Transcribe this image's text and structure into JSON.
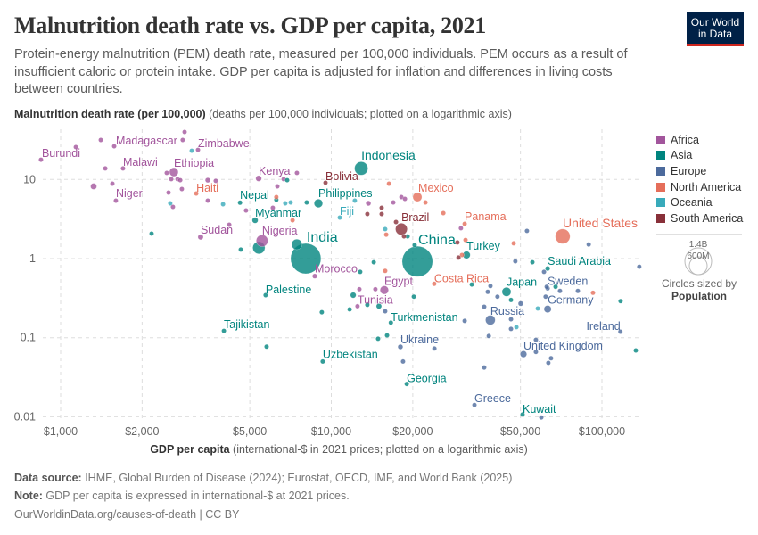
{
  "header": {
    "title": "Malnutrition death rate vs. GDP per capita, 2021",
    "subtitle": "Protein-energy malnutrition (PEM) death rate, measured per 100,000 individuals. PEM occurs as a result of insufficient caloric or protein intake. GDP per capita is adjusted for inflation and differences in living costs between countries.",
    "logo_line1": "Our World",
    "logo_line2": "in Data"
  },
  "axis": {
    "y_label_bold": "Malnutrition death rate (per 100,000)",
    "y_label_rest": " (deaths per 100,000 individuals; plotted on a logarithmic axis)",
    "x_label_bold": "GDP per capita",
    "x_label_rest": " (international-$ in 2021 prices; plotted on a logarithmic axis)"
  },
  "legend": {
    "items": [
      {
        "label": "Africa",
        "color": "#a2559c"
      },
      {
        "label": "Asia",
        "color": "#00847e"
      },
      {
        "label": "Europe",
        "color": "#4c6a9c"
      },
      {
        "label": "North America",
        "color": "#e56e5a"
      },
      {
        "label": "Oceania",
        "color": "#38aaba"
      },
      {
        "label": "South America",
        "color": "#883039"
      }
    ],
    "size_big": "1.4B",
    "size_small": "600M",
    "size_caption": "Circles sized by",
    "size_variable": "Population"
  },
  "footer": {
    "source_label": "Data source:",
    "source": " IHME, Global Burden of Disease (2024); Eurostat, OECD, IMF, and World Bank (2025)",
    "note_label": "Note:",
    "note": " GDP per capita is expressed in international-$ at 2021 prices.",
    "credit": "OurWorldinData.org/causes-of-death | CC BY"
  },
  "chart_data": {
    "type": "scatter",
    "title": "Malnutrition death rate vs. GDP per capita, 2021",
    "xlabel": "GDP per capita",
    "ylabel": "Malnutrition death rate (per 100,000)",
    "xscale": "log",
    "yscale": "log",
    "xlim": [
      850,
      140000
    ],
    "ylim": [
      0.0095,
      45
    ],
    "x_ticks": [
      1000,
      2000,
      5000,
      10000,
      20000,
      50000,
      100000
    ],
    "x_tick_labels": [
      "$1,000",
      "$2,000",
      "$5,000",
      "$10,000",
      "$20,000",
      "$50,000",
      "$100,000"
    ],
    "y_ticks": [
      10,
      1,
      0.1,
      0.01
    ],
    "y_tick_labels": [
      "10",
      "1",
      "0.1",
      "0.01"
    ],
    "grid": true,
    "legend_position": "right",
    "point_fields": [
      "country",
      "region",
      "gdp_per_capita",
      "death_rate",
      "population_millions"
    ],
    "points": [
      [
        "Burundi",
        "Africa",
        846,
        17.8,
        13
      ],
      [
        "Madagascar",
        "Africa",
        1577,
        26.3,
        29
      ],
      [
        "Zimbabwe",
        "Africa",
        3217,
        23.7,
        16
      ],
      [
        "Malawi",
        "Africa",
        1700,
        13.8,
        20
      ],
      [
        "Ethiopia",
        "Africa",
        2620,
        12.4,
        120
      ],
      [
        "Niger",
        "Africa",
        1600,
        5.4,
        26
      ],
      [
        "Sudan",
        "Africa",
        3290,
        1.87,
        46
      ],
      [
        "Kenya",
        "Africa",
        5390,
        10.3,
        53
      ],
      [
        "Nigeria",
        "Africa",
        5550,
        1.68,
        213
      ],
      [
        "Morocco",
        "Africa",
        8690,
        0.6,
        37
      ],
      [
        "Egypt",
        "Africa",
        15700,
        0.4,
        110
      ],
      [
        "Tunisia",
        "Africa",
        12500,
        0.25,
        12
      ],
      [
        "Haiti",
        "North America",
        3170,
        6.65,
        11
      ],
      [
        "Nepal",
        "Asia",
        4600,
        5.1,
        30
      ],
      [
        "Myanmar",
        "Asia",
        5230,
        3.05,
        54
      ],
      [
        "India",
        "Asia",
        8050,
        1.0,
        1410
      ],
      [
        "Indonesia",
        "Asia",
        12900,
        13.8,
        275
      ],
      [
        "Philippines",
        "Asia",
        8960,
        5.0,
        113
      ],
      [
        "Palestine",
        "Asia",
        5720,
        0.345,
        5
      ],
      [
        "China",
        "Asia",
        20800,
        0.92,
        1425
      ],
      [
        "Turkey",
        "Asia",
        31600,
        1.11,
        85
      ],
      [
        "Japan",
        "Asia",
        44400,
        0.38,
        125
      ],
      [
        "Saudi Arabia",
        "Asia",
        63000,
        0.75,
        36
      ],
      [
        "Turkmenistan",
        "Asia",
        16600,
        0.155,
        7
      ],
      [
        "Tajikistan",
        "Asia",
        4010,
        0.122,
        10
      ],
      [
        "Uzbekistan",
        "Asia",
        9300,
        0.05,
        34
      ],
      [
        "Georgia",
        "Asia",
        19000,
        0.026,
        4
      ],
      [
        "Kuwait",
        "Asia",
        50900,
        0.0107,
        4
      ],
      [
        "",
        "Asia",
        5400,
        1.37,
        230
      ],
      [
        "",
        "Asia",
        7460,
        1.51,
        170
      ],
      [
        "Bolivia",
        "South America",
        9520,
        9.1,
        12
      ],
      [
        "Brazil",
        "South America",
        18150,
        2.36,
        214
      ],
      [
        "Fiji",
        "Oceania",
        10750,
        3.3,
        1
      ],
      [
        "Mexico",
        "North America",
        20800,
        6.0,
        127
      ],
      [
        "Panama",
        "North America",
        31100,
        2.75,
        4
      ],
      [
        "Costa Rica",
        "North America",
        24000,
        0.48,
        5
      ],
      [
        "United States",
        "North America",
        71600,
        1.91,
        335
      ],
      [
        "Sweden",
        "Europe",
        63000,
        0.42,
        10
      ],
      [
        "Germany",
        "Europe",
        63000,
        0.23,
        83
      ],
      [
        "Russia",
        "Europe",
        38700,
        0.167,
        145
      ],
      [
        "Ireland",
        "Europe",
        117000,
        0.119,
        5
      ],
      [
        "Ukraine",
        "Europe",
        18000,
        0.0766,
        40
      ],
      [
        "United Kingdom",
        "Europe",
        51300,
        0.062,
        67
      ],
      [
        "Greece",
        "Europe",
        33800,
        0.0141,
        10
      ],
      [
        "",
        "Africa",
        1407,
        31.6,
        10
      ],
      [
        "",
        "Africa",
        2825,
        31.6,
        10
      ],
      [
        "",
        "Africa",
        2871,
        39.9,
        10
      ],
      [
        "",
        "Africa",
        1138,
        25.7,
        10
      ],
      [
        "",
        "Africa",
        1462,
        13.8,
        10
      ],
      [
        "",
        "Africa",
        1324,
        8.19,
        60
      ],
      [
        "",
        "Africa",
        1553,
        8.85,
        10
      ],
      [
        "",
        "Africa",
        2466,
        12.1,
        10
      ],
      [
        "",
        "Africa",
        2563,
        10.1,
        10
      ],
      [
        "",
        "Africa",
        2703,
        10.1,
        30
      ],
      [
        "",
        "Africa",
        2766,
        9.8,
        10
      ],
      [
        "",
        "Africa",
        2805,
        7.57,
        10
      ],
      [
        "",
        "Africa",
        2504,
        6.83,
        10
      ],
      [
        "",
        "Africa",
        2600,
        4.51,
        10
      ],
      [
        "",
        "Africa",
        3497,
        9.8,
        40
      ],
      [
        "",
        "Africa",
        3742,
        9.6,
        10
      ],
      [
        "",
        "Africa",
        3497,
        5.41,
        10
      ],
      [
        "",
        "Africa",
        4197,
        2.68,
        10
      ],
      [
        "",
        "Africa",
        4842,
        4.06,
        10
      ],
      [
        "",
        "Africa",
        6081,
        4.39,
        10
      ],
      [
        "",
        "Africa",
        6320,
        8.19,
        10
      ],
      [
        "",
        "Africa",
        6668,
        10.1,
        10
      ],
      [
        "",
        "Africa",
        7464,
        12.1,
        10
      ],
      [
        "",
        "Africa",
        13710,
        5.0,
        40
      ],
      [
        "",
        "Africa",
        16950,
        5.13,
        10
      ],
      [
        "",
        "Africa",
        18150,
        6.0,
        10
      ],
      [
        "",
        "Africa",
        18710,
        5.69,
        10
      ],
      [
        "",
        "Africa",
        30130,
        2.42,
        10
      ],
      [
        "",
        "Africa",
        14550,
        0.41,
        30
      ],
      [
        "",
        "Africa",
        12700,
        0.41,
        10
      ],
      [
        "",
        "Asia",
        2168,
        2.07,
        25
      ],
      [
        "",
        "Asia",
        4630,
        1.3,
        10
      ],
      [
        "",
        "Asia",
        6266,
        5.55,
        10
      ],
      [
        "",
        "Asia",
        6871,
        9.8,
        10
      ],
      [
        "",
        "Asia",
        8110,
        5.13,
        10
      ],
      [
        "",
        "Asia",
        14350,
        0.9,
        10
      ],
      [
        "",
        "Asia",
        12790,
        0.68,
        10
      ],
      [
        "",
        "Asia",
        12050,
        0.345,
        50
      ],
      [
        "",
        "Asia",
        20320,
        1.48,
        10
      ],
      [
        "",
        "Asia",
        19140,
        1.91,
        10
      ],
      [
        "",
        "Asia",
        55340,
        0.9,
        10
      ],
      [
        "",
        "Asia",
        33040,
        0.47,
        10
      ],
      [
        "",
        "Asia",
        46130,
        0.3,
        10
      ],
      [
        "",
        "Asia",
        20180,
        0.33,
        10
      ],
      [
        "",
        "Asia",
        67410,
        0.44,
        10
      ],
      [
        "",
        "Asia",
        117200,
        0.29,
        10
      ],
      [
        "",
        "Asia",
        9226,
        0.21,
        10
      ],
      [
        "",
        "Asia",
        11690,
        0.228,
        10
      ],
      [
        "",
        "Asia",
        13590,
        0.26,
        10
      ],
      [
        "",
        "Asia",
        15000,
        0.25,
        45
      ],
      [
        "",
        "Asia",
        14890,
        0.097,
        10
      ],
      [
        "",
        "Asia",
        16070,
        0.107,
        10
      ],
      [
        "",
        "Asia",
        5768,
        0.077,
        10
      ],
      [
        "",
        "Asia",
        133400,
        0.069,
        10
      ],
      [
        "",
        "Oceania",
        3050,
        23.1,
        10
      ],
      [
        "",
        "Oceania",
        2541,
        5.0,
        10
      ],
      [
        "",
        "Oceania",
        3981,
        4.87,
        10
      ],
      [
        "",
        "Oceania",
        6761,
        5.0,
        10
      ],
      [
        "",
        "Oceania",
        7079,
        5.13,
        10
      ],
      [
        "",
        "Oceania",
        12220,
        5.41,
        10
      ],
      [
        "",
        "Oceania",
        15820,
        2.36,
        10
      ],
      [
        "",
        "Oceania",
        57940,
        0.234,
        20
      ],
      [
        "",
        "Oceania",
        48300,
        0.136,
        10
      ],
      [
        "",
        "North America",
        6266,
        6.0,
        10
      ],
      [
        "",
        "North America",
        7194,
        3.05,
        10
      ],
      [
        "",
        "North America",
        16330,
        8.85,
        10
      ],
      [
        "",
        "North America",
        22280,
        5.13,
        10
      ],
      [
        "",
        "North America",
        25940,
        3.76,
        10
      ],
      [
        "",
        "North America",
        15960,
        2.01,
        10
      ],
      [
        "",
        "North America",
        31330,
        1.72,
        10
      ],
      [
        "",
        "North America",
        30400,
        1.11,
        10
      ],
      [
        "",
        "North America",
        47200,
        1.56,
        10
      ],
      [
        "",
        "North America",
        15820,
        0.7,
        10
      ],
      [
        "",
        "North America",
        92680,
        0.37,
        10
      ],
      [
        "",
        "South America",
        13590,
        3.66,
        10
      ],
      [
        "",
        "South America",
        15350,
        4.39,
        10
      ],
      [
        "",
        "South America",
        15350,
        3.66,
        10
      ],
      [
        "",
        "South America",
        17340,
        2.9,
        10
      ],
      [
        "",
        "South America",
        18560,
        1.91,
        10
      ],
      [
        "",
        "South America",
        29240,
        1.6,
        10
      ],
      [
        "",
        "South America",
        29510,
        1.03,
        10
      ],
      [
        "",
        "Europe",
        52840,
        2.24,
        20
      ],
      [
        "",
        "Europe",
        89330,
        1.51,
        10
      ],
      [
        "",
        "Europe",
        47860,
        0.925,
        10
      ],
      [
        "",
        "Europe",
        137400,
        0.79,
        10
      ],
      [
        "",
        "Europe",
        61090,
        0.68,
        10
      ],
      [
        "",
        "Europe",
        38730,
        0.45,
        10
      ],
      [
        "",
        "Europe",
        37850,
        0.38,
        10
      ],
      [
        "",
        "Europe",
        41120,
        0.33,
        10
      ],
      [
        "",
        "Europe",
        50120,
        0.27,
        40
      ],
      [
        "",
        "Europe",
        62520,
        0.44,
        10
      ],
      [
        "",
        "Europe",
        69980,
        0.39,
        10
      ],
      [
        "",
        "Europe",
        81470,
        0.39,
        10
      ],
      [
        "",
        "Europe",
        61940,
        0.33,
        10
      ],
      [
        "",
        "Europe",
        36730,
        0.246,
        10
      ],
      [
        "",
        "Europe",
        15820,
        0.216,
        10
      ],
      [
        "",
        "Europe",
        31100,
        0.163,
        10
      ],
      [
        "",
        "Europe",
        46130,
        0.171,
        10
      ],
      [
        "",
        "Europe",
        46130,
        0.129,
        10
      ],
      [
        "",
        "Europe",
        38190,
        0.105,
        10
      ],
      [
        "",
        "Europe",
        57020,
        0.094,
        10
      ],
      [
        "",
        "Europe",
        57020,
        0.066,
        10
      ],
      [
        "",
        "Europe",
        64860,
        0.055,
        10
      ],
      [
        "",
        "Europe",
        63390,
        0.048,
        10
      ],
      [
        "",
        "Europe",
        24040,
        0.073,
        10
      ],
      [
        "",
        "Europe",
        18410,
        0.05,
        10
      ],
      [
        "",
        "Europe",
        36730,
        0.042,
        10
      ],
      [
        "",
        "Europe",
        59700,
        0.0098,
        10
      ]
    ]
  }
}
